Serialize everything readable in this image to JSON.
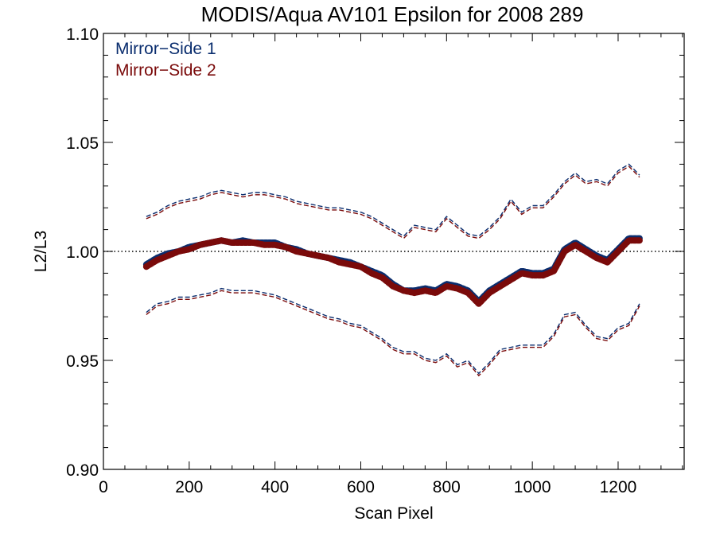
{
  "chart_data": {
    "type": "line",
    "title": "MODIS/Aqua AV101 Epsilon for 2008 289",
    "xlabel": "Scan Pixel",
    "ylabel": "L2/L3",
    "xlim": [
      0,
      1354
    ],
    "ylim": [
      0.9,
      1.1
    ],
    "x_ticks": [
      0,
      200,
      400,
      600,
      800,
      1000,
      1200
    ],
    "x_tick_labels": [
      "0",
      "200",
      "400",
      "600",
      "800",
      "1000",
      "1200"
    ],
    "y_ticks": [
      0.9,
      0.95,
      1.0,
      1.05,
      1.1
    ],
    "y_tick_labels": [
      "0.90",
      "0.95",
      "1.00",
      "1.05",
      "1.10"
    ],
    "reference_line": {
      "y": 1.0,
      "style": "dotted"
    },
    "grid": false,
    "legend_position": "top-left",
    "series": [
      {
        "name": "Mirror−Side 1",
        "color": "#0a2d6e",
        "mean": [
          [
            100,
            0.994
          ],
          [
            125,
            0.997
          ],
          [
            150,
            0.999
          ],
          [
            175,
            1.0
          ],
          [
            200,
            1.002
          ],
          [
            225,
            1.003
          ],
          [
            250,
            1.004
          ],
          [
            275,
            1.005
          ],
          [
            300,
            1.004
          ],
          [
            325,
            1.005
          ],
          [
            350,
            1.004
          ],
          [
            375,
            1.004
          ],
          [
            400,
            1.004
          ],
          [
            425,
            1.002
          ],
          [
            450,
            1.001
          ],
          [
            475,
            0.999
          ],
          [
            500,
            0.998
          ],
          [
            525,
            0.997
          ],
          [
            550,
            0.996
          ],
          [
            575,
            0.995
          ],
          [
            600,
            0.993
          ],
          [
            625,
            0.991
          ],
          [
            650,
            0.989
          ],
          [
            675,
            0.985
          ],
          [
            700,
            0.982
          ],
          [
            725,
            0.982
          ],
          [
            750,
            0.983
          ],
          [
            775,
            0.982
          ],
          [
            800,
            0.985
          ],
          [
            825,
            0.984
          ],
          [
            850,
            0.982
          ],
          [
            875,
            0.977
          ],
          [
            900,
            0.982
          ],
          [
            925,
            0.985
          ],
          [
            950,
            0.988
          ],
          [
            975,
            0.991
          ],
          [
            1000,
            0.99
          ],
          [
            1025,
            0.99
          ],
          [
            1050,
            0.992
          ],
          [
            1075,
            1.001
          ],
          [
            1100,
            1.004
          ],
          [
            1125,
            1.001
          ],
          [
            1150,
            0.998
          ],
          [
            1175,
            0.996
          ],
          [
            1200,
            1.001
          ],
          [
            1225,
            1.006
          ],
          [
            1250,
            1.006
          ]
        ],
        "upper": [
          [
            100,
            1.016
          ],
          [
            125,
            1.018
          ],
          [
            150,
            1.021
          ],
          [
            175,
            1.023
          ],
          [
            200,
            1.024
          ],
          [
            225,
            1.025
          ],
          [
            250,
            1.027
          ],
          [
            275,
            1.028
          ],
          [
            300,
            1.027
          ],
          [
            325,
            1.026
          ],
          [
            350,
            1.027
          ],
          [
            375,
            1.027
          ],
          [
            400,
            1.026
          ],
          [
            425,
            1.025
          ],
          [
            450,
            1.023
          ],
          [
            475,
            1.022
          ],
          [
            500,
            1.021
          ],
          [
            525,
            1.02
          ],
          [
            550,
            1.02
          ],
          [
            575,
            1.019
          ],
          [
            600,
            1.018
          ],
          [
            625,
            1.016
          ],
          [
            650,
            1.013
          ],
          [
            675,
            1.01
          ],
          [
            700,
            1.007
          ],
          [
            725,
            1.012
          ],
          [
            750,
            1.011
          ],
          [
            775,
            1.01
          ],
          [
            800,
            1.016
          ],
          [
            825,
            1.012
          ],
          [
            850,
            1.008
          ],
          [
            875,
            1.007
          ],
          [
            900,
            1.011
          ],
          [
            925,
            1.016
          ],
          [
            950,
            1.024
          ],
          [
            975,
            1.018
          ],
          [
            1000,
            1.021
          ],
          [
            1025,
            1.021
          ],
          [
            1050,
            1.026
          ],
          [
            1075,
            1.032
          ],
          [
            1100,
            1.036
          ],
          [
            1125,
            1.032
          ],
          [
            1150,
            1.033
          ],
          [
            1175,
            1.031
          ],
          [
            1200,
            1.037
          ],
          [
            1225,
            1.04
          ],
          [
            1250,
            1.035
          ]
        ],
        "lower": [
          [
            100,
            0.972
          ],
          [
            125,
            0.976
          ],
          [
            150,
            0.977
          ],
          [
            175,
            0.979
          ],
          [
            200,
            0.979
          ],
          [
            225,
            0.98
          ],
          [
            250,
            0.981
          ],
          [
            275,
            0.983
          ],
          [
            300,
            0.982
          ],
          [
            325,
            0.982
          ],
          [
            350,
            0.982
          ],
          [
            375,
            0.981
          ],
          [
            400,
            0.98
          ],
          [
            425,
            0.978
          ],
          [
            450,
            0.976
          ],
          [
            475,
            0.974
          ],
          [
            500,
            0.972
          ],
          [
            525,
            0.97
          ],
          [
            550,
            0.969
          ],
          [
            575,
            0.967
          ],
          [
            600,
            0.966
          ],
          [
            625,
            0.963
          ],
          [
            650,
            0.96
          ],
          [
            675,
            0.956
          ],
          [
            700,
            0.954
          ],
          [
            725,
            0.954
          ],
          [
            750,
            0.951
          ],
          [
            775,
            0.95
          ],
          [
            800,
            0.953
          ],
          [
            825,
            0.948
          ],
          [
            850,
            0.95
          ],
          [
            875,
            0.944
          ],
          [
            900,
            0.949
          ],
          [
            925,
            0.955
          ],
          [
            950,
            0.956
          ],
          [
            975,
            0.957
          ],
          [
            1000,
            0.957
          ],
          [
            1025,
            0.957
          ],
          [
            1050,
            0.962
          ],
          [
            1075,
            0.971
          ],
          [
            1100,
            0.972
          ],
          [
            1125,
            0.966
          ],
          [
            1150,
            0.961
          ],
          [
            1175,
            0.96
          ],
          [
            1200,
            0.965
          ],
          [
            1225,
            0.967
          ],
          [
            1250,
            0.976
          ]
        ]
      },
      {
        "name": "Mirror−Side 2",
        "color": "#7a0a0a",
        "mean": [
          [
            100,
            0.993
          ],
          [
            125,
            0.996
          ],
          [
            150,
            0.998
          ],
          [
            175,
            1.0
          ],
          [
            200,
            1.001
          ],
          [
            225,
            1.003
          ],
          [
            250,
            1.004
          ],
          [
            275,
            1.005
          ],
          [
            300,
            1.004
          ],
          [
            325,
            1.004
          ],
          [
            350,
            1.004
          ],
          [
            375,
            1.003
          ],
          [
            400,
            1.003
          ],
          [
            425,
            1.002
          ],
          [
            450,
            1.0
          ],
          [
            475,
            0.999
          ],
          [
            500,
            0.998
          ],
          [
            525,
            0.997
          ],
          [
            550,
            0.995
          ],
          [
            575,
            0.994
          ],
          [
            600,
            0.993
          ],
          [
            625,
            0.99
          ],
          [
            650,
            0.988
          ],
          [
            675,
            0.984
          ],
          [
            700,
            0.982
          ],
          [
            725,
            0.981
          ],
          [
            750,
            0.982
          ],
          [
            775,
            0.981
          ],
          [
            800,
            0.984
          ],
          [
            825,
            0.983
          ],
          [
            850,
            0.981
          ],
          [
            875,
            0.976
          ],
          [
            900,
            0.981
          ],
          [
            925,
            0.984
          ],
          [
            950,
            0.987
          ],
          [
            975,
            0.99
          ],
          [
            1000,
            0.989
          ],
          [
            1025,
            0.989
          ],
          [
            1050,
            0.991
          ],
          [
            1075,
            1.0
          ],
          [
            1100,
            1.003
          ],
          [
            1125,
            1.0
          ],
          [
            1150,
            0.997
          ],
          [
            1175,
            0.995
          ],
          [
            1200,
            1.0
          ],
          [
            1225,
            1.005
          ],
          [
            1250,
            1.005
          ]
        ],
        "upper": [
          [
            100,
            1.015
          ],
          [
            125,
            1.017
          ],
          [
            150,
            1.02
          ],
          [
            175,
            1.022
          ],
          [
            200,
            1.023
          ],
          [
            225,
            1.024
          ],
          [
            250,
            1.026
          ],
          [
            275,
            1.027
          ],
          [
            300,
            1.026
          ],
          [
            325,
            1.025
          ],
          [
            350,
            1.026
          ],
          [
            375,
            1.026
          ],
          [
            400,
            1.025
          ],
          [
            425,
            1.024
          ],
          [
            450,
            1.022
          ],
          [
            475,
            1.021
          ],
          [
            500,
            1.02
          ],
          [
            525,
            1.019
          ],
          [
            550,
            1.019
          ],
          [
            575,
            1.018
          ],
          [
            600,
            1.017
          ],
          [
            625,
            1.015
          ],
          [
            650,
            1.012
          ],
          [
            675,
            1.009
          ],
          [
            700,
            1.006
          ],
          [
            725,
            1.011
          ],
          [
            750,
            1.01
          ],
          [
            775,
            1.009
          ],
          [
            800,
            1.015
          ],
          [
            825,
            1.011
          ],
          [
            850,
            1.007
          ],
          [
            875,
            1.006
          ],
          [
            900,
            1.01
          ],
          [
            925,
            1.015
          ],
          [
            950,
            1.023
          ],
          [
            975,
            1.017
          ],
          [
            1000,
            1.02
          ],
          [
            1025,
            1.02
          ],
          [
            1050,
            1.025
          ],
          [
            1075,
            1.031
          ],
          [
            1100,
            1.035
          ],
          [
            1125,
            1.031
          ],
          [
            1150,
            1.032
          ],
          [
            1175,
            1.03
          ],
          [
            1200,
            1.036
          ],
          [
            1225,
            1.039
          ],
          [
            1250,
            1.034
          ]
        ],
        "lower": [
          [
            100,
            0.971
          ],
          [
            125,
            0.975
          ],
          [
            150,
            0.976
          ],
          [
            175,
            0.978
          ],
          [
            200,
            0.978
          ],
          [
            225,
            0.979
          ],
          [
            250,
            0.98
          ],
          [
            275,
            0.982
          ],
          [
            300,
            0.981
          ],
          [
            325,
            0.981
          ],
          [
            350,
            0.981
          ],
          [
            375,
            0.98
          ],
          [
            400,
            0.979
          ],
          [
            425,
            0.977
          ],
          [
            450,
            0.975
          ],
          [
            475,
            0.973
          ],
          [
            500,
            0.971
          ],
          [
            525,
            0.969
          ],
          [
            550,
            0.968
          ],
          [
            575,
            0.966
          ],
          [
            600,
            0.965
          ],
          [
            625,
            0.962
          ],
          [
            650,
            0.959
          ],
          [
            675,
            0.955
          ],
          [
            700,
            0.953
          ],
          [
            725,
            0.953
          ],
          [
            750,
            0.95
          ],
          [
            775,
            0.949
          ],
          [
            800,
            0.952
          ],
          [
            825,
            0.947
          ],
          [
            850,
            0.949
          ],
          [
            875,
            0.943
          ],
          [
            900,
            0.948
          ],
          [
            925,
            0.954
          ],
          [
            950,
            0.955
          ],
          [
            975,
            0.956
          ],
          [
            1000,
            0.956
          ],
          [
            1025,
            0.956
          ],
          [
            1050,
            0.961
          ],
          [
            1075,
            0.97
          ],
          [
            1100,
            0.971
          ],
          [
            1125,
            0.965
          ],
          [
            1150,
            0.96
          ],
          [
            1175,
            0.959
          ],
          [
            1200,
            0.964
          ],
          [
            1225,
            0.966
          ],
          [
            1250,
            0.975
          ]
        ]
      }
    ]
  }
}
